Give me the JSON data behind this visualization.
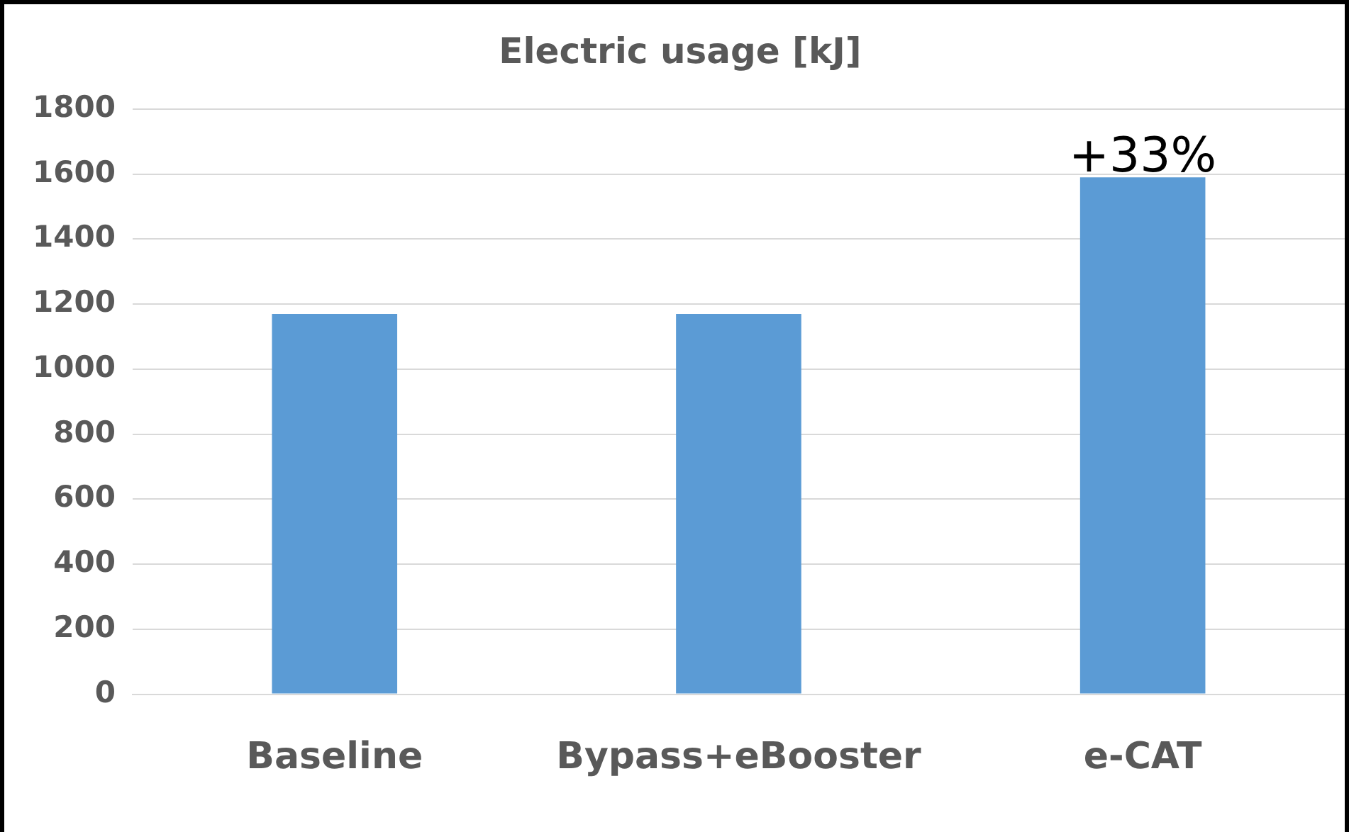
{
  "chart_data": {
    "type": "bar",
    "title": "Electric usage [kJ]",
    "categories": [
      "Baseline",
      "Bypass+eBooster",
      "e-CAT"
    ],
    "values": [
      1170,
      1170,
      1590
    ],
    "color": "#5b9bd5",
    "ylim": [
      0,
      1800
    ],
    "yticks": [
      0,
      200,
      400,
      600,
      800,
      1000,
      1200,
      1400,
      1600,
      1800
    ],
    "grid": "y",
    "legend": false,
    "annotations": [
      {
        "text": "+33%",
        "x": "e-CAT",
        "y": 1590
      }
    ]
  }
}
